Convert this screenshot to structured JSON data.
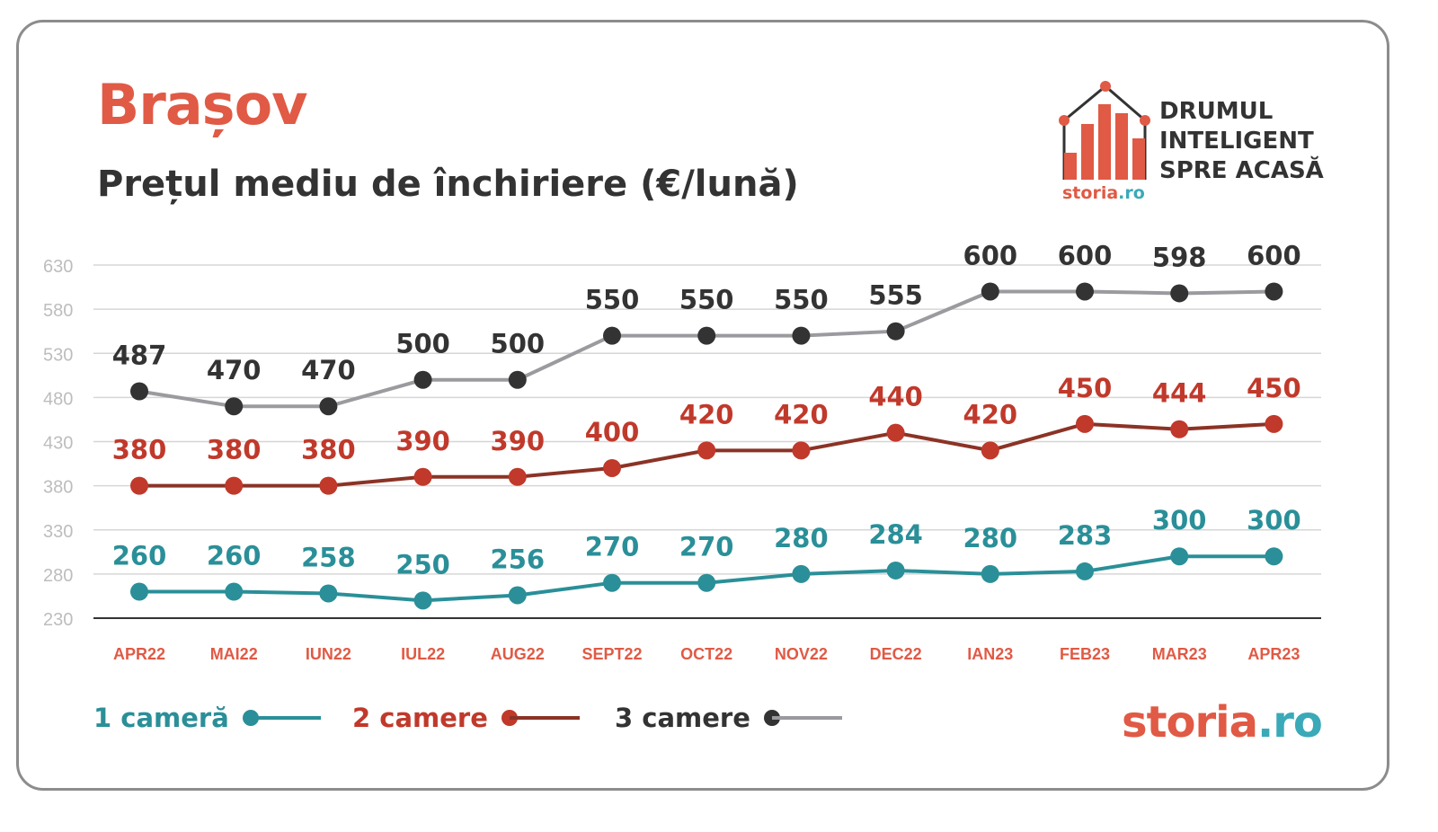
{
  "title": "Brașov",
  "subtitle": "Prețul mediu de închiriere (€/lună)",
  "logo": {
    "lines": [
      "DRUMUL",
      "INTELIGENT",
      "SPRE ACASĂ"
    ],
    "brand_main": "storia",
    "brand_suffix": ".ro"
  },
  "footer_brand": {
    "main": "storia",
    "suffix": ".ro"
  },
  "colors": {
    "accent": "#e05a45",
    "teal": "#2a8f98",
    "brown": "#8b3326",
    "dark": "#333333",
    "gray_line": "#9a9a9f",
    "grid": "#d6d6d6",
    "tick": "#bdbdbd"
  },
  "chart_data": {
    "type": "line",
    "categories": [
      "APR22",
      "MAI22",
      "IUN22",
      "IUL22",
      "AUG22",
      "SEPT22",
      "OCT22",
      "NOV22",
      "DEC22",
      "IAN23",
      "FEB23",
      "MAR23",
      "APR23"
    ],
    "yticks": [
      630,
      580,
      530,
      480,
      430,
      380,
      330,
      280,
      230
    ],
    "ylim": [
      230,
      630
    ],
    "grid": true,
    "legend_position": "bottom-left",
    "series": [
      {
        "name": "1 cameră",
        "color": "#2a8f98",
        "line_color": "#2a8f98",
        "label_color": "#2a8f98",
        "values": [
          260,
          260,
          258,
          250,
          256,
          270,
          270,
          280,
          284,
          280,
          283,
          300,
          300
        ]
      },
      {
        "name": "2 camere",
        "color": "#c0392b",
        "line_color": "#8b3326",
        "label_color": "#c0392b",
        "values": [
          380,
          380,
          380,
          390,
          390,
          400,
          420,
          420,
          440,
          420,
          450,
          444,
          450
        ]
      },
      {
        "name": "3 camere",
        "color": "#333333",
        "line_color": "#9a9a9f",
        "label_color": "#333333",
        "values": [
          487,
          470,
          470,
          500,
          500,
          550,
          550,
          550,
          555,
          600,
          600,
          598,
          600
        ]
      }
    ]
  }
}
